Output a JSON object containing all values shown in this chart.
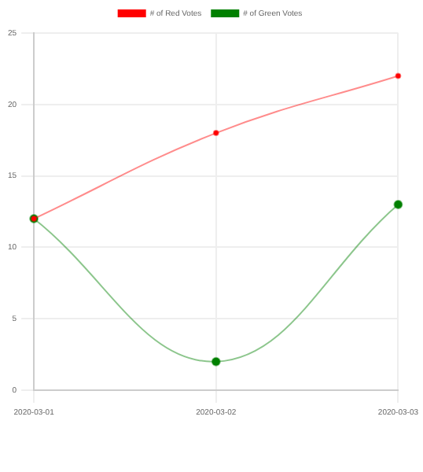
{
  "chart_data": {
    "type": "line",
    "categories": [
      "2020-03-01",
      "2020-03-02",
      "2020-03-03"
    ],
    "series": [
      {
        "name": "# of Red Votes",
        "color": "#ff0000",
        "values": [
          12,
          18,
          22
        ]
      },
      {
        "name": "# of Green Votes",
        "color": "#008000",
        "values": [
          12,
          2,
          13
        ]
      }
    ],
    "ylim": [
      0,
      25
    ],
    "yticks": [
      0,
      5,
      10,
      15,
      20,
      25
    ],
    "grid": true,
    "legend": "top",
    "marker": "circle"
  }
}
